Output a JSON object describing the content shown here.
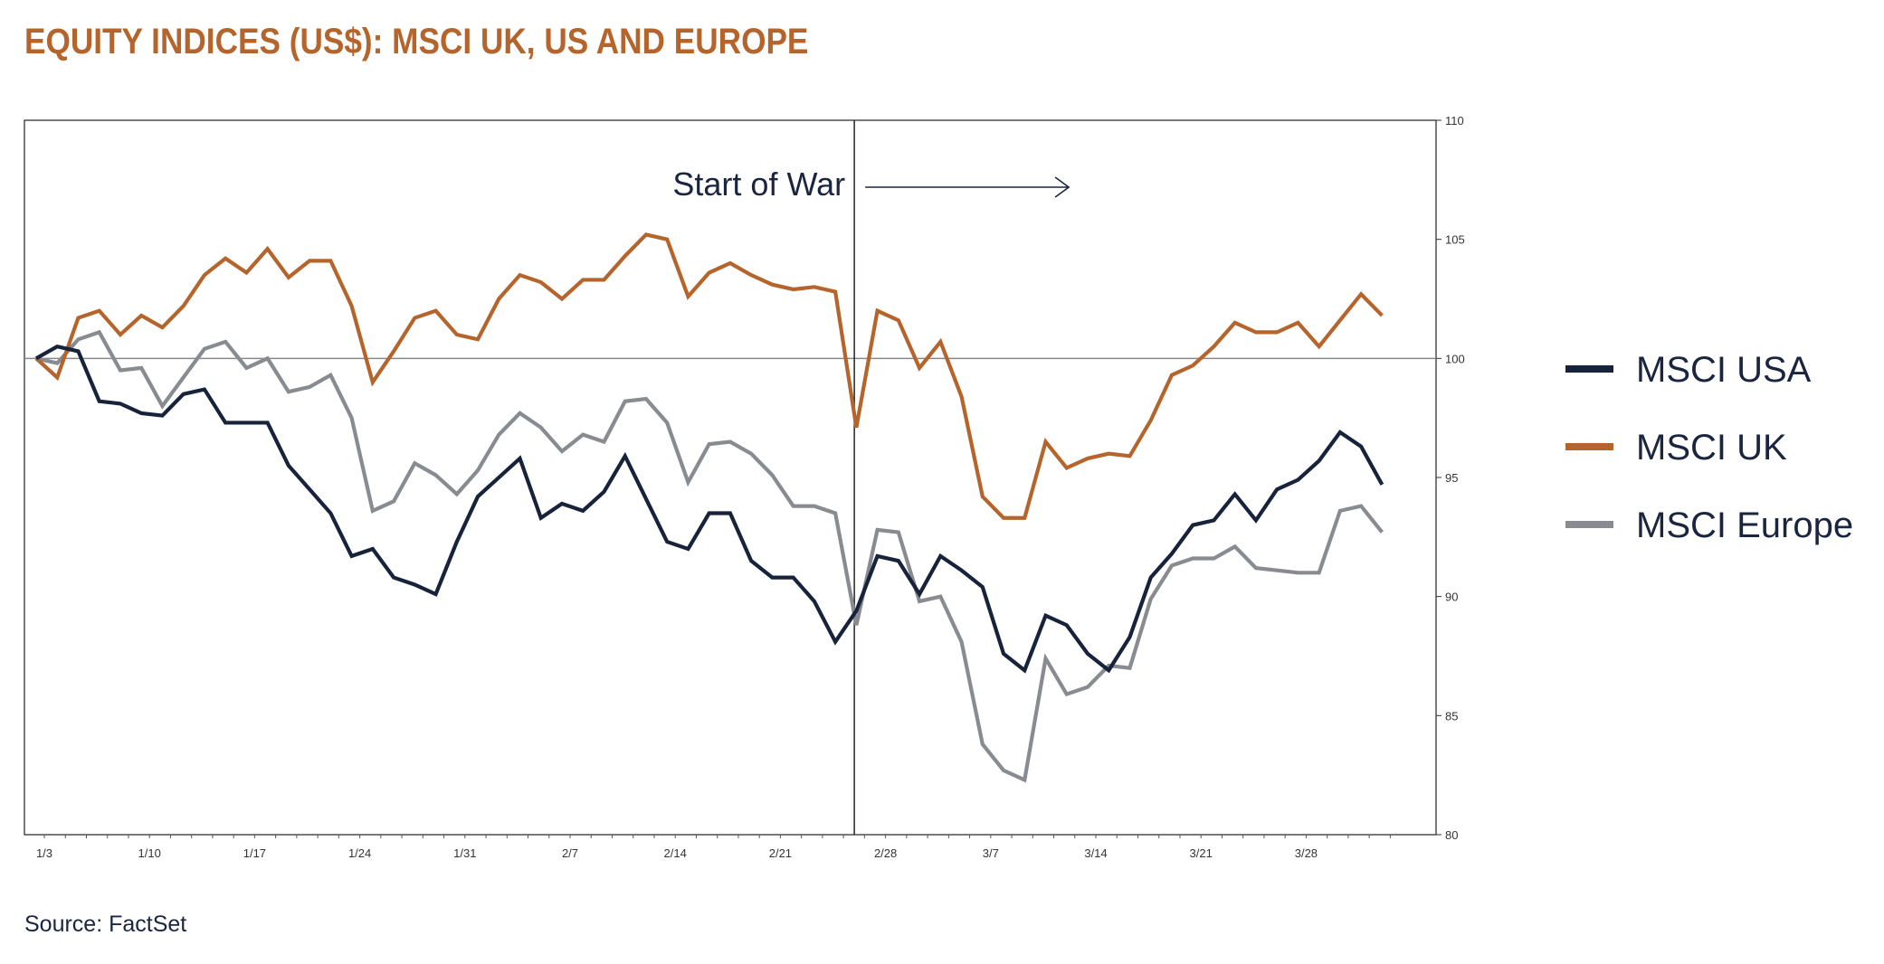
{
  "title": "EQUITY INDICES (US$): MSCI UK, US AND EUROPE",
  "source": "Source: FactSet",
  "chart_data": {
    "type": "line",
    "title": "EQUITY INDICES (US$): MSCI UK, US AND EUROPE",
    "xlabel": "",
    "ylabel": "",
    "ylim": [
      80,
      110
    ],
    "y_axis_position": "right",
    "y_ticks": [
      80,
      85,
      90,
      95,
      100,
      105,
      110
    ],
    "x_tick_labels": [
      "1/3",
      "1/10",
      "1/17",
      "1/24",
      "1/31",
      "2/7",
      "2/14",
      "2/21",
      "2/28",
      "3/7",
      "3/14",
      "3/21",
      "3/28"
    ],
    "reference_line": 100,
    "grid": false,
    "legend_position": "right",
    "annotation": {
      "text": "Start of War",
      "at": "2/24"
    },
    "x": [
      "1/3",
      "1/4",
      "1/5",
      "1/6",
      "1/7",
      "1/10",
      "1/11",
      "1/12",
      "1/13",
      "1/14",
      "1/17",
      "1/18",
      "1/19",
      "1/20",
      "1/21",
      "1/24",
      "1/25",
      "1/26",
      "1/27",
      "1/28",
      "1/31",
      "2/1",
      "2/2",
      "2/3",
      "2/4",
      "2/7",
      "2/8",
      "2/9",
      "2/10",
      "2/11",
      "2/14",
      "2/15",
      "2/16",
      "2/17",
      "2/18",
      "2/21",
      "2/22",
      "2/23",
      "2/24",
      "2/25",
      "2/28",
      "3/1",
      "3/2",
      "3/3",
      "3/4",
      "3/7",
      "3/8",
      "3/9",
      "3/10",
      "3/11",
      "3/14",
      "3/15",
      "3/16",
      "3/17",
      "3/18",
      "3/21",
      "3/22",
      "3/23",
      "3/24",
      "3/25",
      "3/28",
      "3/29",
      "3/30",
      "3/31",
      "4/1"
    ],
    "series": [
      {
        "name": "MSCI USA",
        "color": "#17223b",
        "values": [
          100,
          100.5,
          100.3,
          98.2,
          98.1,
          97.7,
          97.6,
          98.5,
          98.7,
          97.3,
          97.3,
          97.3,
          95.5,
          94.5,
          93.5,
          91.7,
          92.0,
          90.8,
          90.5,
          90.1,
          92.3,
          94.2,
          95.0,
          95.8,
          93.3,
          93.9,
          93.6,
          94.4,
          95.9,
          94.1,
          92.3,
          92.0,
          93.5,
          93.5,
          91.5,
          90.8,
          90.8,
          89.8,
          88.1,
          89.4,
          91.7,
          91.5,
          90.1,
          91.7,
          91.1,
          90.4,
          87.6,
          86.9,
          89.2,
          88.8,
          87.6,
          86.9,
          88.3,
          90.8,
          91.8,
          93.0,
          93.2,
          94.3,
          93.2,
          94.5,
          94.9,
          95.7,
          96.9,
          96.3,
          94.7
        ]
      },
      {
        "name": "MSCI UK",
        "color": "#b5652b",
        "values": [
          100,
          99.2,
          101.7,
          102.0,
          101.0,
          101.8,
          101.3,
          102.2,
          103.5,
          104.2,
          103.6,
          104.6,
          103.4,
          104.1,
          104.1,
          102.2,
          99.0,
          100.3,
          101.7,
          102.0,
          101.0,
          100.8,
          102.5,
          103.5,
          103.2,
          102.5,
          103.3,
          103.3,
          104.3,
          105.2,
          105.0,
          102.6,
          103.6,
          104.0,
          103.5,
          103.1,
          102.9,
          103.0,
          102.8,
          97.1,
          102.0,
          101.6,
          99.6,
          100.7,
          98.4,
          94.2,
          93.3,
          93.3,
          96.5,
          95.4,
          95.8,
          96.0,
          95.9,
          97.4,
          99.3,
          99.7,
          100.5,
          101.5,
          101.1,
          101.1,
          101.5,
          100.5,
          101.6,
          102.7,
          101.8
        ]
      },
      {
        "name": "MSCI Europe",
        "color": "#888b90",
        "values": [
          100,
          99.8,
          100.8,
          101.1,
          99.5,
          99.6,
          98.0,
          99.2,
          100.4,
          100.7,
          99.6,
          100,
          98.6,
          98.8,
          99.3,
          97.5,
          93.6,
          94.0,
          95.6,
          95.1,
          94.3,
          95.3,
          96.8,
          97.7,
          97.1,
          96.1,
          96.8,
          96.5,
          98.2,
          98.3,
          97.3,
          94.8,
          96.4,
          96.5,
          96.0,
          95.1,
          93.8,
          93.8,
          93.5,
          88.8,
          92.8,
          92.7,
          89.8,
          90.0,
          88.1,
          83.8,
          82.7,
          82.3,
          87.4,
          85.9,
          86.2,
          87.1,
          87.0,
          89.9,
          91.3,
          91.6,
          91.6,
          92.1,
          91.2,
          91.1,
          91.0,
          91.0,
          93.6,
          93.8,
          92.7
        ]
      }
    ]
  }
}
